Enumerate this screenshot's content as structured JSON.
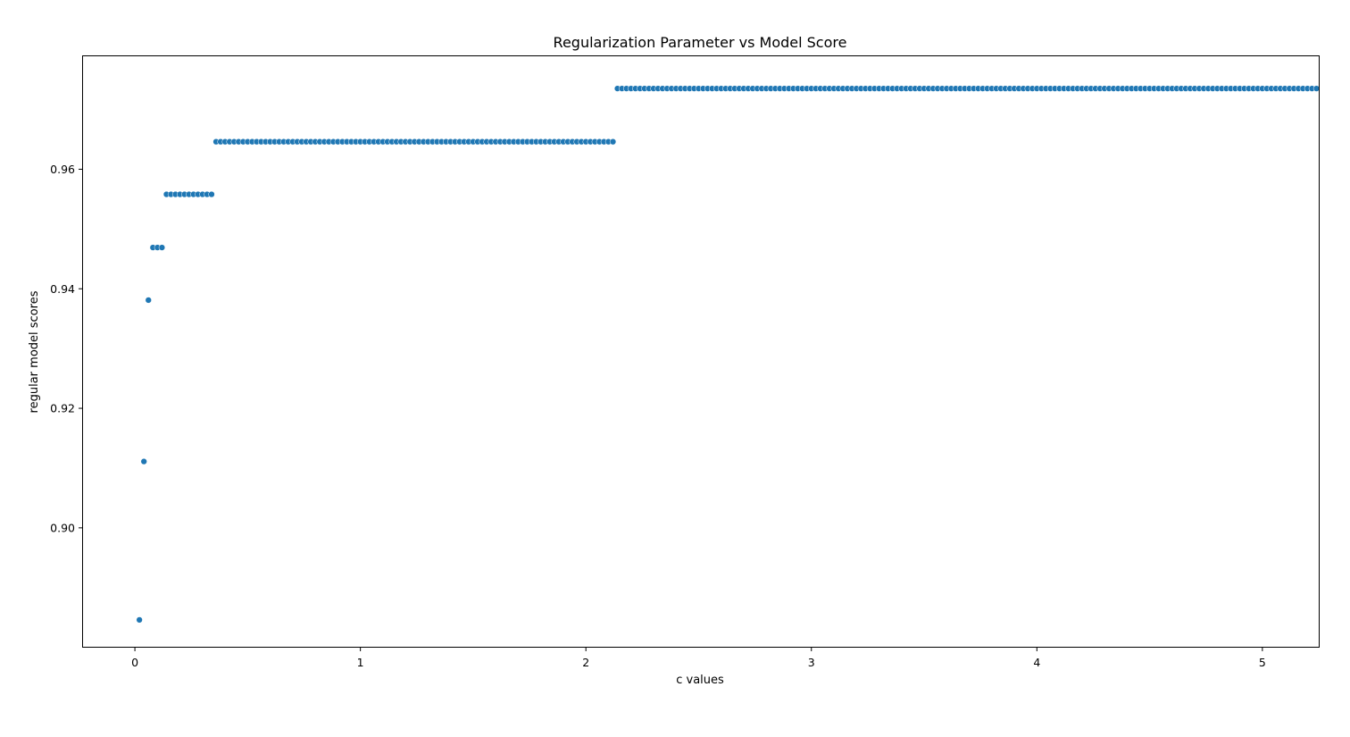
{
  "chart_data": {
    "type": "scatter",
    "title": "Regularization Parameter vs Model Score",
    "xlabel": "c values",
    "ylabel": "regular model scores",
    "xlim": [
      -0.23,
      5.25
    ],
    "ylim": [
      0.8801,
      0.9789
    ],
    "xticks": [
      0,
      1,
      2,
      3,
      4,
      5
    ],
    "yticks": [
      0.9,
      0.92,
      0.94,
      0.96
    ],
    "xtick_labels": [
      "0",
      "1",
      "2",
      "3",
      "4",
      "5"
    ],
    "ytick_labels": [
      "0.90",
      "0.92",
      "0.94",
      "0.96"
    ],
    "grid": false,
    "legend": "none",
    "marker_color": "#1f77b4",
    "series": [
      {
        "x_start": 0.02,
        "x_step": 0.02,
        "count": 250,
        "values": [
          0.8846,
          0.9111,
          0.9381,
          0.9469,
          0.9469,
          0.9469,
          0.9558,
          0.9558,
          0.9558,
          0.9558,
          0.9558,
          0.9558,
          0.9558,
          0.9558,
          0.9558,
          0.9558,
          0.9558,
          0.9646,
          0.9646,
          0.9646,
          0.9646,
          0.9646,
          0.9646,
          0.9646,
          0.9646,
          0.9646,
          0.9646,
          0.9646,
          0.9646,
          0.9646,
          0.9646,
          0.9646,
          0.9646,
          0.9646,
          0.9646,
          0.9646,
          0.9646,
          0.9646,
          0.9646,
          0.9646,
          0.9646,
          0.9646,
          0.9646,
          0.9646,
          0.9646,
          0.9646,
          0.9646,
          0.9646,
          0.9646,
          0.9646,
          0.9646,
          0.9646,
          0.9646,
          0.9646,
          0.9646,
          0.9646,
          0.9646,
          0.9646,
          0.9646,
          0.9646,
          0.9646,
          0.9646,
          0.9646,
          0.9646,
          0.9646,
          0.9646,
          0.9646,
          0.9646,
          0.9646,
          0.9646,
          0.9646,
          0.9646,
          0.9646,
          0.9646,
          0.9646,
          0.9646,
          0.9646,
          0.9646,
          0.9646,
          0.9646,
          0.9646,
          0.9646,
          0.9646,
          0.9646,
          0.9646,
          0.9646,
          0.9646,
          0.9646,
          0.9646,
          0.9646,
          0.9646,
          0.9646,
          0.9646,
          0.9646,
          0.9646,
          0.9646,
          0.9646,
          0.9646,
          0.9646,
          0.9646,
          0.9646,
          0.9646,
          0.9646,
          0.9646,
          0.9646,
          0.9646,
          0.9735,
          0.9735,
          0.9735,
          0.9735,
          0.9735,
          0.9735,
          0.9735,
          0.9735,
          0.9735,
          0.9735,
          0.9735,
          0.9735,
          0.9735,
          0.9735,
          0.9735,
          0.9735,
          0.9735,
          0.9735,
          0.9735,
          0.9735,
          0.9735,
          0.9735,
          0.9735,
          0.9735,
          0.9735,
          0.9735,
          0.9735,
          0.9735,
          0.9735,
          0.9735,
          0.9735,
          0.9735,
          0.9735,
          0.9735,
          0.9735,
          0.9735,
          0.9735,
          0.9735,
          0.9735,
          0.9735,
          0.9735,
          0.9735,
          0.9735,
          0.9735,
          0.9735,
          0.9735,
          0.9735,
          0.9735,
          0.9735,
          0.9735,
          0.9735,
          0.9735,
          0.9735,
          0.9735,
          0.9735,
          0.9735,
          0.9735,
          0.9735,
          0.9735,
          0.9735,
          0.9735,
          0.9735,
          0.9735,
          0.9735,
          0.9735,
          0.9735,
          0.9735,
          0.9735,
          0.9735,
          0.9735,
          0.9735,
          0.9735,
          0.9735,
          0.9735,
          0.9735,
          0.9735,
          0.9735,
          0.9735,
          0.9735,
          0.9735,
          0.9735,
          0.9735,
          0.9735,
          0.9735,
          0.9735,
          0.9735,
          0.9735,
          0.9735,
          0.9735,
          0.9735,
          0.9735,
          0.9735,
          0.9735,
          0.9735,
          0.9735,
          0.9735,
          0.9735,
          0.9735,
          0.9735,
          0.9735,
          0.9735,
          0.9735,
          0.9735,
          0.9735,
          0.9735,
          0.9735,
          0.9735,
          0.9735,
          0.9735,
          0.9735,
          0.9735,
          0.9735,
          0.9735,
          0.9735,
          0.9735,
          0.9735,
          0.9735,
          0.9735,
          0.9735,
          0.9735,
          0.9735,
          0.9735,
          0.9735,
          0.9735,
          0.9735,
          0.9735,
          0.9735,
          0.9735,
          0.9735,
          0.9735,
          0.9735,
          0.9735,
          0.9735,
          0.9735,
          0.9735,
          0.9735,
          0.9735,
          0.9735,
          0.9735,
          0.9735,
          0.9735,
          0.9735,
          0.9735,
          0.9735,
          0.9735,
          0.9735,
          0.9735,
          0.9735,
          0.9735,
          0.9735,
          0.9735,
          0.9735,
          0.9735,
          0.9735,
          0.9735,
          0.9735
        ]
      }
    ]
  }
}
